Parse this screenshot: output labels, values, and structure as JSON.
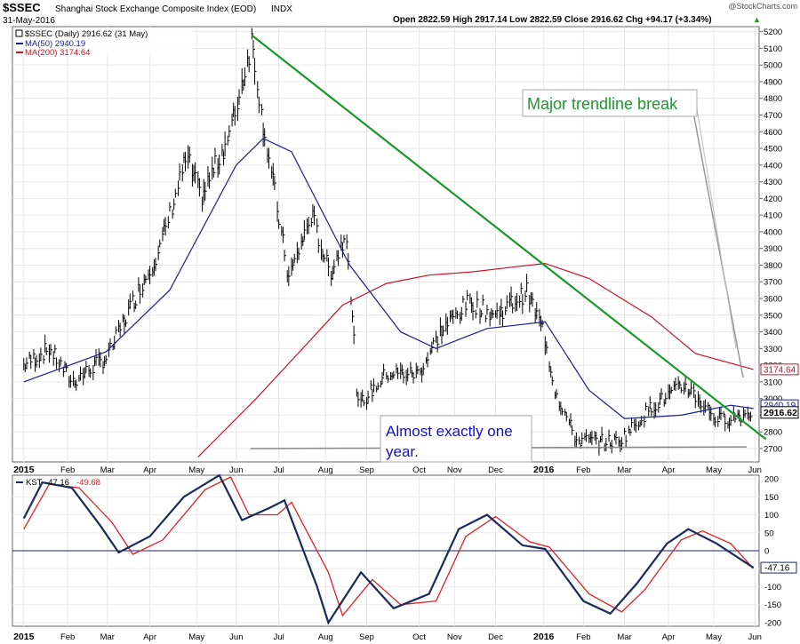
{
  "header": {
    "symbol": "$SSEC",
    "name": "Shanghai Stock Exchange Composite Index (EOD)",
    "exchange": "INDX",
    "date": "31-May-2016",
    "watermark": "@StockCharts.com",
    "ohlc": "Open 2822.59  High 2917.14  Low 2822.59  Close 2916.62  Chg +94.17 (+3.34%)",
    "ohlc_arrow": "▲"
  },
  "legend": {
    "price": "$SSEC (Daily) 2916.62 (31 May)",
    "ma50": "MA(50) 2940.19",
    "ma200": "MA(200) 3174.64"
  },
  "annotations": {
    "trendline_break": "Major trendline break",
    "one_year": [
      "Almost exactly one",
      "year."
    ]
  },
  "price_tags": {
    "ma200": "3174.64",
    "ma50": "2940.19",
    "close": "2916.62"
  },
  "kst": {
    "label": "KST",
    "value1": "-47.16",
    "value2": "-49.68",
    "tag": "-47.16"
  },
  "colors": {
    "price": "#000000",
    "ma50": "#1a1f8c",
    "ma200": "#cc1122",
    "trendline": "#1a9a2a",
    "kst": "#1a2a5a",
    "kst_signal": "#e02020",
    "annotation_green": "#1a9a2a",
    "annotation_blue": "#1010cc"
  },
  "chart_data": [
    {
      "type": "line",
      "title": "$SSEC Shanghai Stock Exchange Composite Index (EOD) INDX",
      "x_ticks": [
        "2015",
        "Feb",
        "Mar",
        "Apr",
        "May",
        "Jun",
        "Jul",
        "Aug",
        "Sep",
        "Oct",
        "Nov",
        "Dec",
        "2016",
        "Feb",
        "Mar",
        "Apr",
        "May",
        "Jun"
      ],
      "y_ticks": [
        2700,
        2800,
        2900,
        3000,
        3100,
        3200,
        3300,
        3400,
        3500,
        3600,
        3700,
        3800,
        3900,
        4000,
        4100,
        4200,
        4300,
        4400,
        4500,
        4600,
        4700,
        4800,
        4900,
        5000,
        5100,
        5200
      ],
      "ylim": [
        2620,
        5230
      ],
      "grid": true,
      "series": [
        {
          "name": "$SSEC (Daily)",
          "style": "ohlc",
          "x": [
            "2015-01-02",
            "2015-01-20",
            "2015-02-05",
            "2015-03-02",
            "2015-03-20",
            "2015-04-08",
            "2015-04-27",
            "2015-05-07",
            "2015-05-28",
            "2015-06-12",
            "2015-06-19",
            "2015-07-08",
            "2015-07-24",
            "2015-08-06",
            "2015-08-18",
            "2015-08-26",
            "2015-09-15",
            "2015-10-08",
            "2015-10-23",
            "2015-11-12",
            "2015-12-01",
            "2015-12-23",
            "2016-01-04",
            "2016-01-12",
            "2016-01-27",
            "2016-02-26",
            "2016-03-21",
            "2016-04-13",
            "2016-05-06",
            "2016-05-31"
          ],
          "values": [
            3200,
            3300,
            3100,
            3250,
            3580,
            3900,
            4450,
            4200,
            4600,
            5150,
            4700,
            3720,
            4100,
            3750,
            4000,
            2950,
            3150,
            3150,
            3400,
            3580,
            3500,
            3640,
            3400,
            3050,
            2750,
            2740,
            2960,
            3080,
            2870,
            2916.62
          ]
        },
        {
          "name": "MA(50) 2940.19",
          "x": [
            "2015-01-02",
            "2015-03-01",
            "2015-04-15",
            "2015-06-01",
            "2015-06-20",
            "2015-07-10",
            "2015-08-20",
            "2015-09-25",
            "2015-10-20",
            "2015-11-25",
            "2016-01-05",
            "2016-02-05",
            "2016-03-01",
            "2016-04-10",
            "2016-05-15",
            "2016-05-31"
          ],
          "values": [
            3100,
            3280,
            3650,
            4400,
            4560,
            4480,
            3800,
            3400,
            3300,
            3420,
            3460,
            3050,
            2880,
            2900,
            2960,
            2940.19
          ]
        },
        {
          "name": "MA(200) 3174.64",
          "x": [
            "2015-05-05",
            "2015-06-15",
            "2015-07-20",
            "2015-08-15",
            "2015-09-15",
            "2015-10-15",
            "2015-11-15",
            "2015-12-15",
            "2016-01-05",
            "2016-02-05",
            "2016-03-20",
            "2016-04-20",
            "2016-05-31"
          ],
          "values": [
            2650,
            3000,
            3320,
            3560,
            3690,
            3740,
            3760,
            3790,
            3810,
            3720,
            3490,
            3270,
            3174.64
          ]
        },
        {
          "name": "trendline",
          "x": [
            "2015-06-12",
            "2016-05-31"
          ],
          "values": [
            5178,
            2820
          ]
        }
      ],
      "annotations": [
        "Major trendline break",
        "Almost exactly one year."
      ]
    },
    {
      "type": "line",
      "title": "KST -47.16, -49.68",
      "y_ticks": [
        -200,
        -150,
        -100,
        -50,
        0,
        50,
        100,
        150,
        200
      ],
      "ylim": [
        -210,
        210
      ],
      "series": [
        {
          "name": "KST",
          "x": [
            "2015-01-02",
            "2015-01-15",
            "2015-02-05",
            "2015-02-25",
            "2015-03-10",
            "2015-04-01",
            "2015-04-25",
            "2015-05-20",
            "2015-06-05",
            "2015-06-25",
            "2015-07-05",
            "2015-07-28",
            "2015-08-05",
            "2015-08-28",
            "2015-09-20",
            "2015-10-15",
            "2015-11-05",
            "2015-11-25",
            "2015-12-20",
            "2016-01-05",
            "2016-02-01",
            "2016-02-20",
            "2016-03-10",
            "2016-03-31",
            "2016-04-15",
            "2016-05-05",
            "2016-05-31"
          ],
          "values": [
            90,
            190,
            175,
            70,
            -5,
            40,
            150,
            210,
            85,
            120,
            140,
            -100,
            -200,
            -60,
            -160,
            -120,
            60,
            100,
            15,
            5,
            -140,
            -175,
            -90,
            20,
            60,
            20,
            -47.16
          ]
        },
        {
          "name": "Signal",
          "x": [
            "2015-01-02",
            "2015-01-20",
            "2015-02-10",
            "2015-03-05",
            "2015-03-20",
            "2015-04-10",
            "2015-05-10",
            "2015-05-28",
            "2015-06-10",
            "2015-06-30",
            "2015-07-10",
            "2015-08-05",
            "2015-08-15",
            "2015-09-05",
            "2015-09-25",
            "2015-10-20",
            "2015-11-10",
            "2015-12-01",
            "2015-12-25",
            "2016-01-08",
            "2016-02-05",
            "2016-02-28",
            "2016-03-15",
            "2016-04-10",
            "2016-04-25",
            "2016-05-15",
            "2016-05-31"
          ],
          "values": [
            60,
            185,
            175,
            80,
            -10,
            30,
            170,
            205,
            100,
            100,
            135,
            -60,
            -180,
            -80,
            -150,
            -140,
            40,
            95,
            25,
            10,
            -120,
            -170,
            -110,
            30,
            55,
            20,
            -49.68
          ]
        }
      ]
    }
  ]
}
